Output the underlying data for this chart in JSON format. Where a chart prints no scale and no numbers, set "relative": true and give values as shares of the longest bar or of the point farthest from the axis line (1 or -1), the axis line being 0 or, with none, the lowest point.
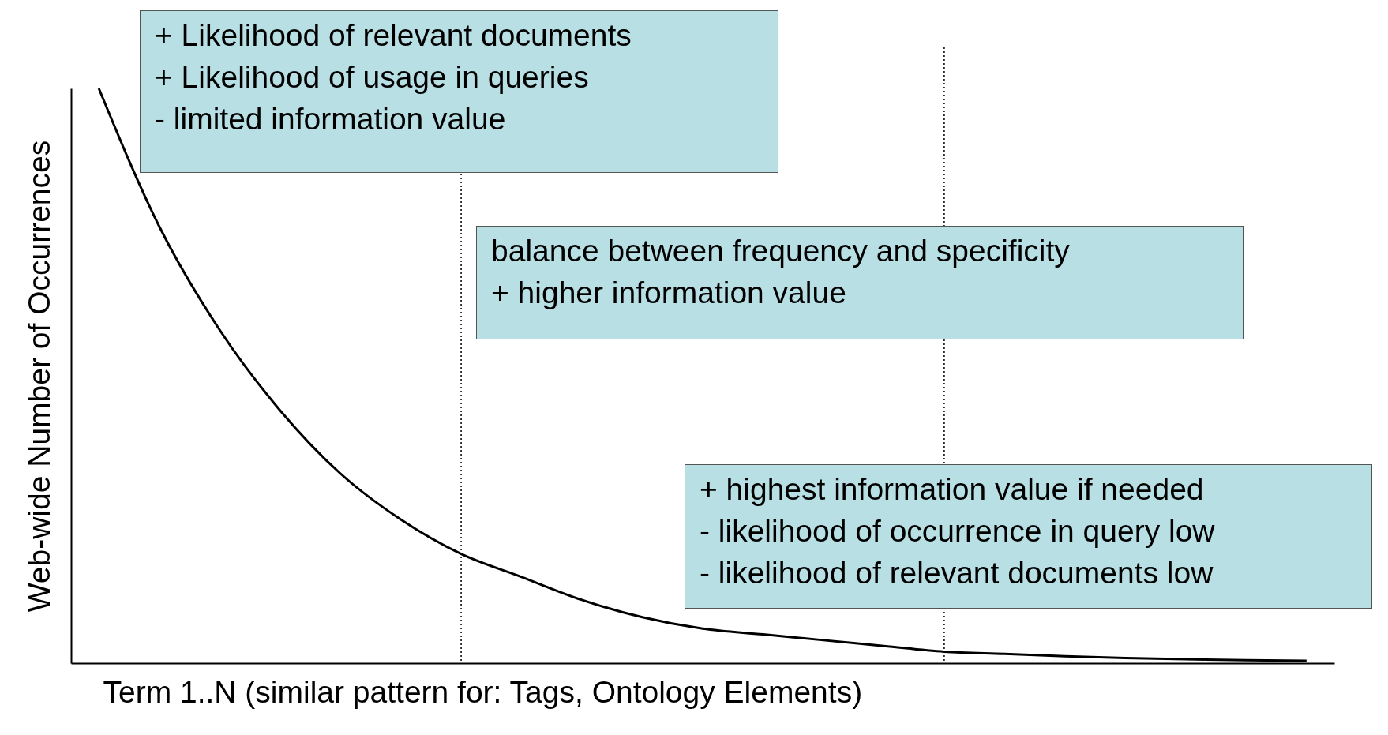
{
  "chart_data": {
    "type": "line",
    "relative": true,
    "xlabel": "Term 1..N (similar pattern for: Tags, Ontology Elements)",
    "ylabel": "Web-wide Number of Occurrences",
    "categories": [
      null,
      null,
      null,
      null,
      null,
      null,
      null,
      null,
      null,
      null,
      null,
      null,
      null,
      null,
      null,
      null,
      null,
      null,
      null,
      null,
      null
    ],
    "series": [
      {
        "color": "#000000",
        "values": [
          1,
          0.76,
          0.58,
          0.44,
          0.33,
          0.25,
          0.19,
          0.15,
          0.11,
          0.08,
          0.06,
          0.05,
          0.04,
          0.03,
          0.02,
          0.016,
          0.012,
          0.009,
          0.007,
          0.005,
          0.004
        ]
      }
    ],
    "annotations": [
      "+ Likelihood of relevant documents\n+ Likelihood of usage in queries\n- limited information value",
      "balance between frequency and specificity\n+ higher information value",
      "+ highest information value if needed\n- likelihood of occurrence in query low\n- likelihood of relevant documents low"
    ],
    "tick_labels": false,
    "grid": false,
    "marker": "none",
    "line_style": "solid"
  }
}
